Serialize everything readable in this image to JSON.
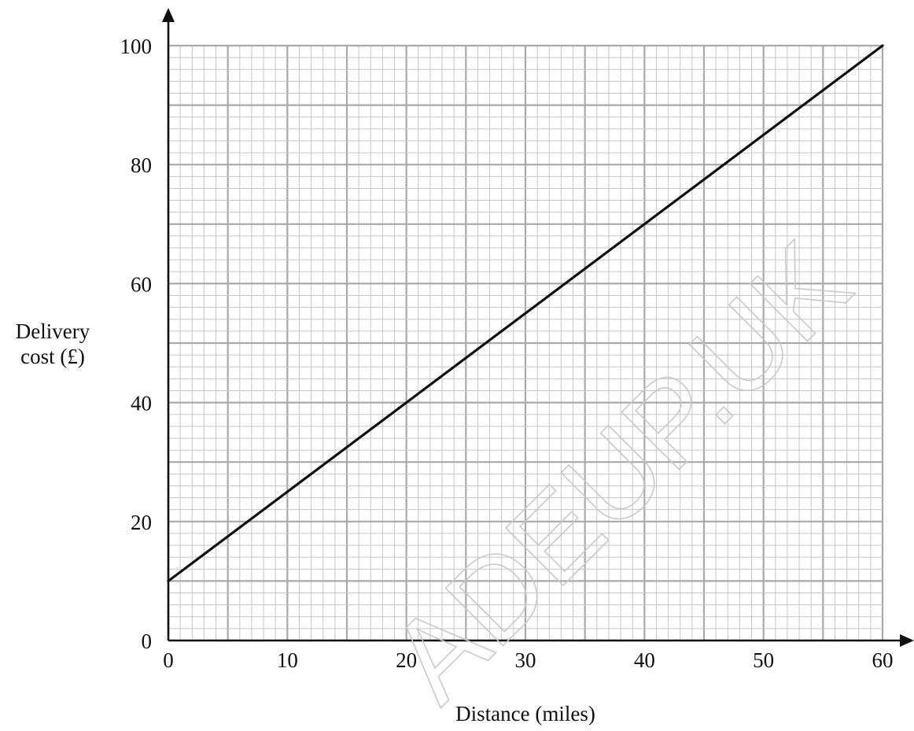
{
  "chart_data": {
    "type": "line",
    "title": "",
    "xlabel": "Distance (miles)",
    "ylabel_lines": [
      "Delivery",
      "cost (£)"
    ],
    "xlim": [
      0,
      60
    ],
    "ylim": [
      0,
      100
    ],
    "x_ticks": [
      0,
      10,
      20,
      30,
      40,
      50,
      60
    ],
    "y_ticks": [
      0,
      20,
      40,
      60,
      80,
      100
    ],
    "x_tick_labels": [
      "0",
      "10",
      "20",
      "30",
      "40",
      "50",
      "60"
    ],
    "y_tick_labels": [
      "0",
      "20",
      "40",
      "60",
      "80",
      "100"
    ],
    "grid": true,
    "grid_minor_x_step": 1,
    "grid_minor_y_step": 2,
    "grid_major_x_step": 5,
    "grid_major_y_step": 10,
    "legend": false,
    "series": [
      {
        "x": [
          0,
          60
        ],
        "y": [
          10,
          100
        ]
      }
    ]
  },
  "watermark": "ADEUP.UK",
  "colors": {
    "line": "#111111",
    "axis": "#111111",
    "grid_minor": "#c6c6c6",
    "grid_major": "#a9a9a9",
    "watermark": "#c9c9c9"
  }
}
